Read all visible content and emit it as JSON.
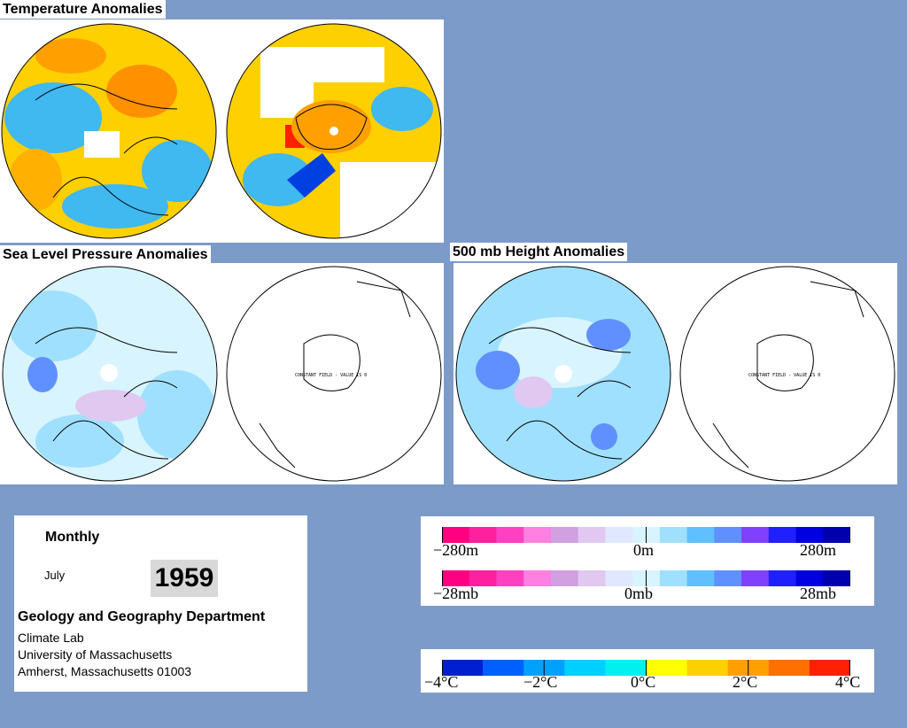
{
  "sections": {
    "temperature": {
      "title": "Temperature Anomalies"
    },
    "slp": {
      "title": "Sea Level Pressure Anomalies",
      "constant_field_text": "CONSTANT FIELD - VALUE IS 0"
    },
    "h500": {
      "title": "500 mb Height Anomalies",
      "constant_field_text": "CONSTANT FIELD - VALUE IS 0"
    }
  },
  "info": {
    "period": "Monthly",
    "month": "July",
    "year": "1959",
    "department": "Geology and Geography Department",
    "lab": "Climate Lab",
    "university": "University of Massachusetts",
    "address": "Amherst, Massachusetts 01003"
  },
  "legend_height": {
    "ticks": [
      "−280m",
      "0m",
      "280m"
    ]
  },
  "legend_pressure": {
    "ticks": [
      "−28mb",
      "0mb",
      "28mb"
    ]
  },
  "legend_temp": {
    "ticks": [
      "−4°C",
      "−2°C",
      "0°C",
      "2°C",
      "4°C"
    ]
  },
  "colors": {
    "background": "#7d9bc8",
    "pressure_scale": [
      "#ff0080",
      "#ff20a0",
      "#ff40c0",
      "#ff80e0",
      "#d0a0e0",
      "#e0c8f0",
      "#e0e8ff",
      "#d8f4ff",
      "#a0e0ff",
      "#60c0ff",
      "#6090ff",
      "#8040ff",
      "#2020ff",
      "#0000e0",
      "#0000b0"
    ],
    "temp_scale": [
      "#0020d0",
      "#0060ff",
      "#00a0ff",
      "#00d0ff",
      "#00f0f0",
      "#ffff00",
      "#ffd000",
      "#ffa000",
      "#ff7000",
      "#ff2000"
    ]
  }
}
